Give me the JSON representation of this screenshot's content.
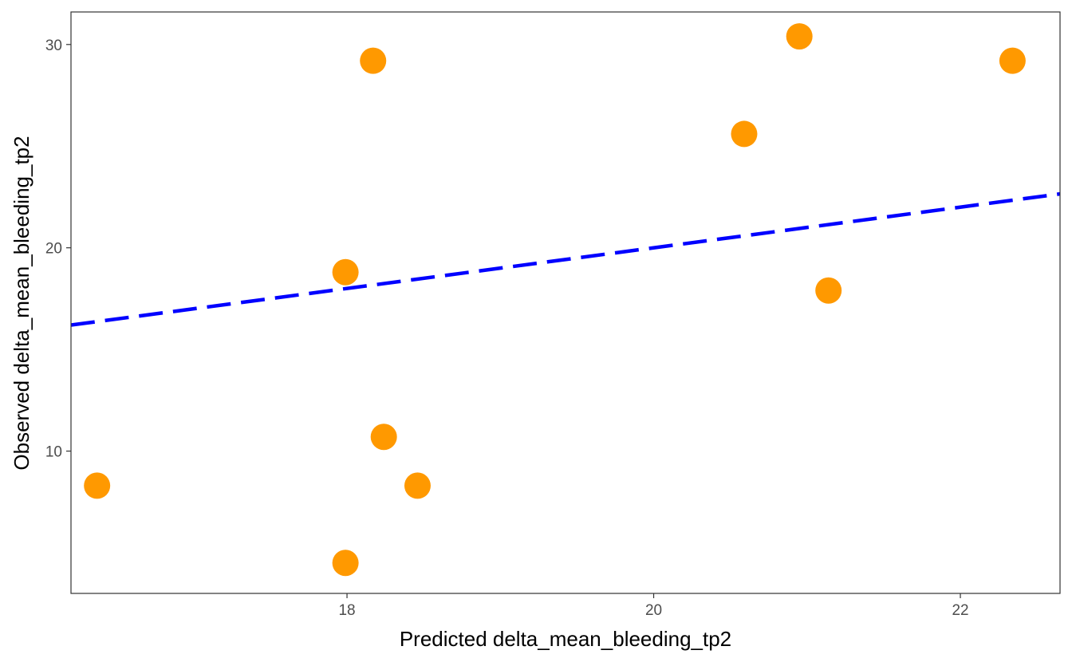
{
  "chart_data": {
    "type": "scatter",
    "title": "",
    "xlabel": "Predicted delta_mean_bleeding_tp2",
    "ylabel": "Observed delta_mean_bleeding_tp2",
    "xlim": [
      16.2,
      22.65
    ],
    "ylim": [
      3.0,
      31.6
    ],
    "x_ticks": [
      18,
      20,
      22
    ],
    "y_ticks": [
      10,
      20,
      30
    ],
    "x_tick_labels": [
      "18",
      "20",
      "22"
    ],
    "y_tick_labels": [
      "10",
      "20",
      "30"
    ],
    "grid": false,
    "point_color": "#FF9900",
    "series": [
      {
        "x": [
          16.37,
          17.99,
          18.17,
          18.24,
          18.46,
          17.99,
          20.59,
          20.95,
          21.14,
          22.34
        ],
        "y": [
          8.3,
          4.5,
          29.2,
          10.7,
          8.3,
          18.8,
          25.6,
          30.4,
          17.9,
          29.2
        ]
      }
    ],
    "reference_line": {
      "slope": 1,
      "intercept": 0,
      "style": "dashed",
      "color": "#0000FF"
    }
  }
}
